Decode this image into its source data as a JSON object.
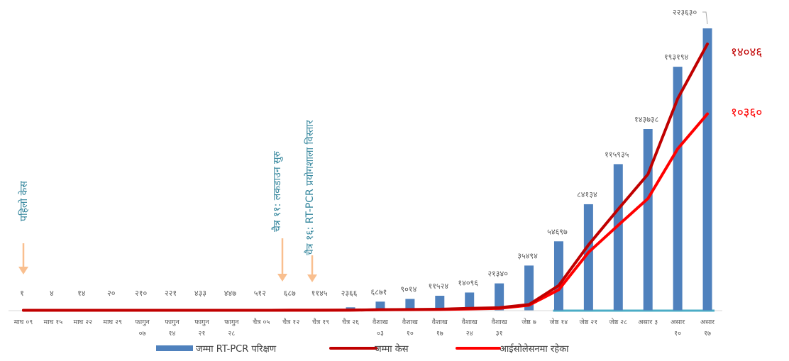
{
  "chart_data": {
    "type": "bar",
    "categories": [
      [
        "माघ ०९"
      ],
      [
        "माघ १५"
      ],
      [
        "माघ २२"
      ],
      [
        "माघ २९"
      ],
      [
        "फागुन",
        "०७"
      ],
      [
        "फागुन",
        "१४"
      ],
      [
        "फागुन",
        "२१"
      ],
      [
        "फागुन",
        "२८"
      ],
      [
        "चैत्र ०५"
      ],
      [
        "चैत्र १२"
      ],
      [
        "चैत्र १९"
      ],
      [
        "चैत्र २६"
      ],
      [
        "वैशाख",
        "०३"
      ],
      [
        "वैशाख",
        "१०"
      ],
      [
        "वैशाख",
        "१७"
      ],
      [
        "वैशाख",
        "२४"
      ],
      [
        "वैशाख",
        "३१"
      ],
      [
        "जेष्ठ ७"
      ],
      [
        "जेष्ठ १४"
      ],
      [
        "जेष्ठ २१"
      ],
      [
        "जेष्ठ २८"
      ],
      [
        "असार ३"
      ],
      [
        "असार",
        "१०"
      ],
      [
        "असार",
        "१७"
      ]
    ],
    "series": [
      {
        "name": "जम्मा  RT-PCR परिक्षण",
        "type": "bar",
        "color": "#4f81bd",
        "values": [
          1,
          4,
          14,
          20,
          210,
          221,
          433,
          447,
          512,
          687,
          1145,
          2366,
          6871,
          9014,
          11524,
          14096,
          21340,
          35494,
          54697,
          84134,
          115935,
          143738,
          193194,
          223630
        ],
        "labels": [
          "१",
          "४",
          "१४",
          "२०",
          "२१०",
          "२२१",
          "४३३",
          "४४७",
          "५१२",
          "६८७",
          "११४५",
          "२३६६",
          "६८७१",
          "९०१४",
          "११५२४",
          "१४०९६",
          "२१३४०",
          "३५४९४",
          "५४६९७",
          "८४१३४",
          "११५९३५",
          "१४३७३८",
          "१९३१९४",
          "२२३६३०"
        ]
      },
      {
        "name": "जम्मा  केस",
        "type": "line",
        "color": "#c00000",
        "values": [
          1,
          1,
          1,
          1,
          1,
          1,
          1,
          1,
          1,
          3,
          5,
          9,
          31,
          42,
          57,
          102,
          134,
          304,
          1308,
          3448,
          5335,
          7177,
          11162,
          14046
        ],
        "end_label": "१४०४६"
      },
      {
        "name": "आईसोलेसनमा  रहेका",
        "type": "line",
        "color": "#ff0000",
        "values": [
          1,
          1,
          1,
          1,
          1,
          1,
          1,
          1,
          1,
          3,
          4,
          8,
          27,
          33,
          41,
          70,
          103,
          266,
          1082,
          3055,
          4486,
          5894,
          8516,
          10360
        ],
        "end_label": "१०३६०"
      }
    ],
    "annotations": [
      {
        "text": "पहिलो केस",
        "at": "माघ ०९"
      },
      {
        "text": "चैत्र ११: लकडाउन सुरु",
        "at": "चैत्र १२"
      },
      {
        "text": "चैत्र १६: RT-PCR प्रयोगशाला विस्तार",
        "at": "चैत्र १९"
      }
    ],
    "xlabel": "",
    "ylabel": "",
    "title": "",
    "grid": false,
    "legend_position": "bottom"
  }
}
